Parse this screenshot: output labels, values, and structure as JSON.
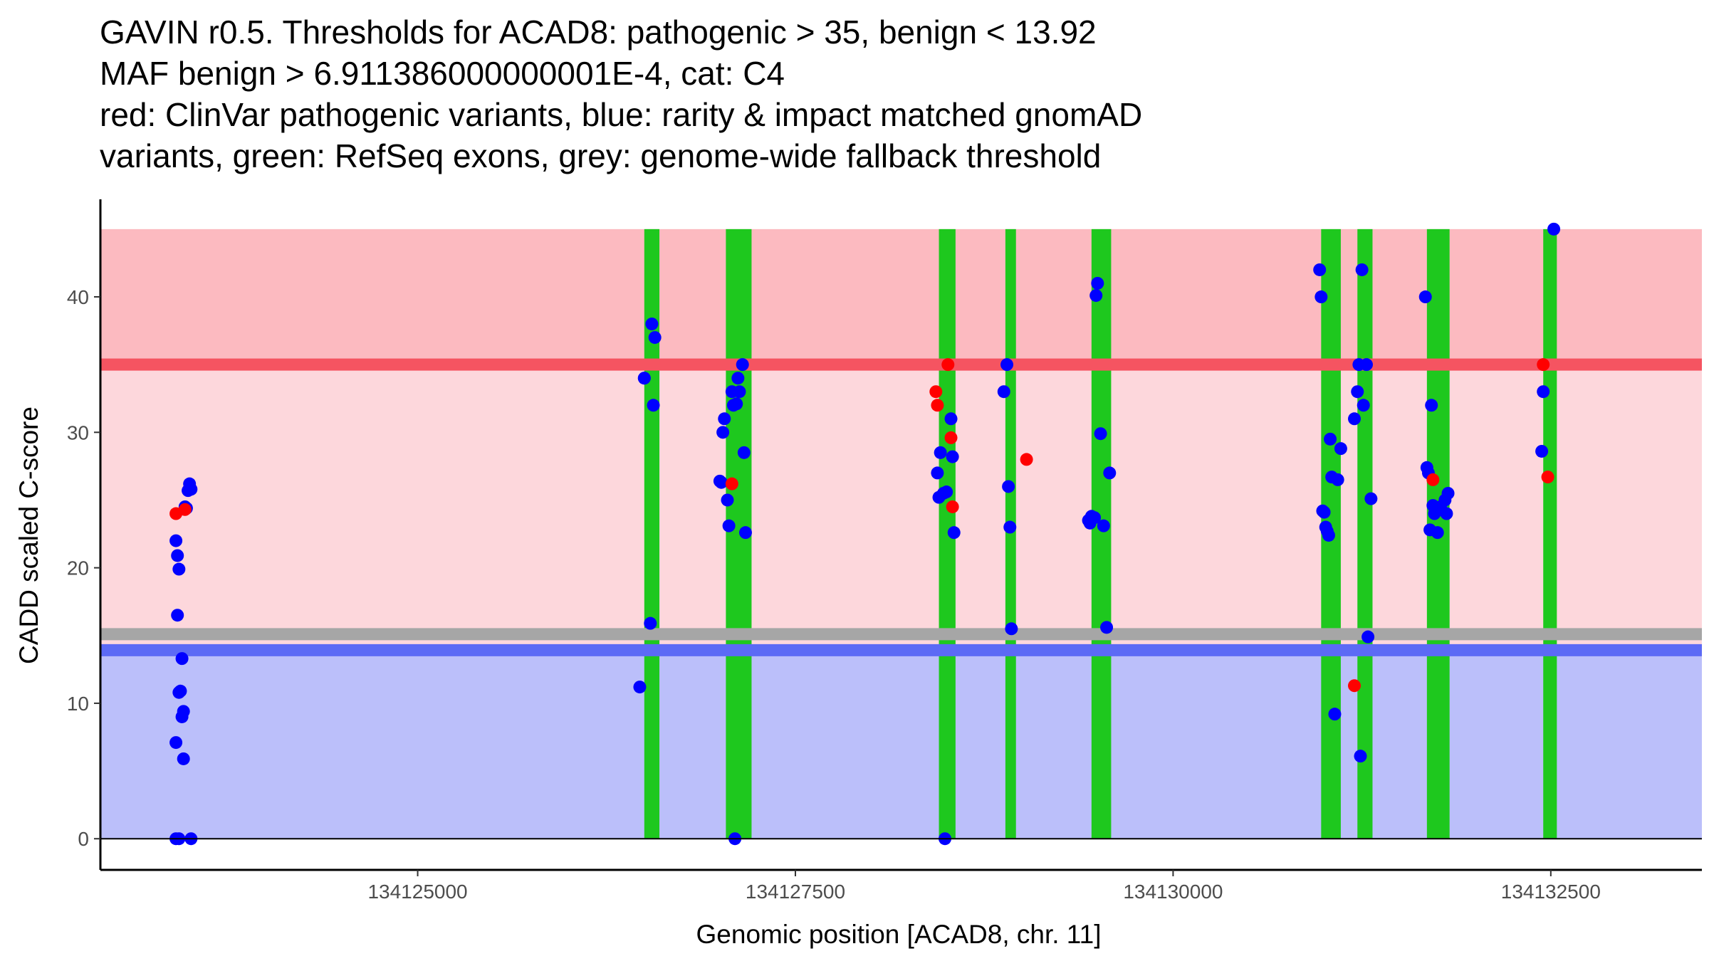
{
  "chart_data": {
    "type": "scatter",
    "title_lines": [
      "GAVIN r0.5. Thresholds for ACAD8: pathogenic > 35, benign < 13.92",
      "MAF benign > 6.911386000000001E-4, cat: C4",
      "red: ClinVar pathogenic variants, blue: rarity & impact matched gnomAD",
      "variants, green: RefSeq exons, grey: genome-wide fallback threshold"
    ],
    "xlabel": "Genomic position [ACAD8, chr. 11]",
    "ylabel": "CADD scaled C-score",
    "xlim": [
      134122900,
      134133500
    ],
    "ylim": [
      -2.3,
      47.2
    ],
    "x_ticks": [
      134125000,
      134127500,
      134130000,
      134132500
    ],
    "x_tick_labels": [
      "134125000",
      "134127500",
      "134130000",
      "134132500"
    ],
    "y_ticks": [
      0,
      10,
      20,
      30,
      40
    ],
    "y_tick_labels": [
      "0",
      "10",
      "20",
      "30",
      "40"
    ],
    "grid": false,
    "colors": {
      "pathogenic_band": "#fcbac0",
      "vus_band": "#fdd7dc",
      "benign_band": "#bbbffa",
      "pathogenic_threshold_line": "#f55461",
      "benign_threshold_line": "#5c6af5",
      "fallback_threshold_line": "#a6a6a6",
      "exon": "#1ec81e",
      "clinvar_point": "#ff0000",
      "gnomad_point": "#0000ff",
      "axis": "#000000"
    },
    "bands": [
      {
        "name": "pathogenic",
        "y_from": 35,
        "y_to": 45
      },
      {
        "name": "vus",
        "y_from": 13.92,
        "y_to": 35
      },
      {
        "name": "benign",
        "y_from": 0,
        "y_to": 13.92
      }
    ],
    "thresholds": [
      {
        "name": "pathogenic",
        "value": 35
      },
      {
        "name": "benign",
        "value": 13.92
      },
      {
        "name": "fallback",
        "value": 15.1
      }
    ],
    "exons": [
      [
        134126500,
        134126600
      ],
      [
        134127040,
        134127210
      ],
      [
        134128450,
        134128560
      ],
      [
        134128890,
        134128960
      ],
      [
        134129460,
        134129590
      ],
      [
        134130980,
        134131110
      ],
      [
        134131220,
        134131320
      ],
      [
        134131680,
        134131830
      ],
      [
        134132450,
        134132540
      ]
    ],
    "series": [
      {
        "name": "gnomAD rarity & impact matched variants",
        "x": [
          134123400,
          134123400,
          134123410,
          134123420,
          134123410,
          134123400,
          134123430,
          134123420,
          134123440,
          134123440,
          134123450,
          134123450,
          134123470,
          134123480,
          134123420,
          134123460,
          134123490,
          134123500,
          134123500,
          134126470,
          134126500,
          134126500,
          134126540,
          134126550,
          134126570,
          134126560,
          134127000,
          134127010,
          134127020,
          134127030,
          134127050,
          134127060,
          134127080,
          134127090,
          134127100,
          134127110,
          134127120,
          134127130,
          134127150,
          134127160,
          134127170,
          134128440,
          134128450,
          134128460,
          134128480,
          134128490,
          134128500,
          134128530,
          134128540,
          134128550,
          134128880,
          134128900,
          134128910,
          134128920,
          134128930,
          134129440,
          134129450,
          134129460,
          134129480,
          134129490,
          134129500,
          134129520,
          134129540,
          134129560,
          134129580,
          134130970,
          134130980,
          134130990,
          134131000,
          134131010,
          134131020,
          134131030,
          134131040,
          134131050,
          134131070,
          134131090,
          134131110,
          134131200,
          134131220,
          134131230,
          134131240,
          134131250,
          134131260,
          134131280,
          134131290,
          134131310,
          134131670,
          134131680,
          134131690,
          134131700,
          134131710,
          134131720,
          134131730,
          134131750,
          134131770,
          134131800,
          134131810,
          134131820,
          134132440,
          134132450,
          134132520
        ],
        "y": [
          0,
          7.1,
          16.5,
          19.9,
          20.9,
          22.0,
          10.9,
          10.8,
          13.3,
          9.0,
          9.4,
          5.9,
          24.4,
          25.7,
          0,
          24.5,
          26.2,
          25.8,
          0,
          11.2,
          34.0,
          34.0,
          15.9,
          38.0,
          37.0,
          32.0,
          26.4,
          26.3,
          30.0,
          31.0,
          25.0,
          23.1,
          33.0,
          32.0,
          0,
          32.1,
          34.0,
          33.0,
          35.0,
          28.5,
          22.6,
          27.0,
          25.2,
          28.5,
          25.5,
          0,
          25.6,
          31.0,
          28.2,
          22.6,
          33.0,
          35.0,
          26.0,
          23.0,
          15.5,
          23.5,
          23.3,
          23.8,
          23.7,
          40.1,
          41.0,
          29.9,
          23.1,
          15.6,
          27.0,
          42.0,
          40.0,
          24.2,
          24.1,
          23.0,
          22.7,
          22.4,
          29.5,
          26.7,
          9.2,
          26.5,
          28.8,
          31.0,
          33.0,
          35.0,
          6.1,
          42.0,
          32.0,
          35.0,
          14.9,
          25.1,
          40.0,
          27.4,
          27.0,
          22.8,
          32.0,
          24.6,
          24.0,
          22.6,
          24.5,
          25.0,
          24.0,
          25.5,
          28.6,
          33.0,
          45.0
        ]
      },
      {
        "name": "ClinVar pathogenic variants",
        "x": [
          134123400,
          134123460,
          134127080,
          134128430,
          134128440,
          134128510,
          134128530,
          134128540,
          134129030,
          134131200,
          134131720,
          134132450,
          134132480
        ],
        "y": [
          24.0,
          24.3,
          26.2,
          33.0,
          32.0,
          35.0,
          29.6,
          24.5,
          28.0,
          11.3,
          26.5,
          35.0,
          26.7
        ]
      }
    ]
  }
}
